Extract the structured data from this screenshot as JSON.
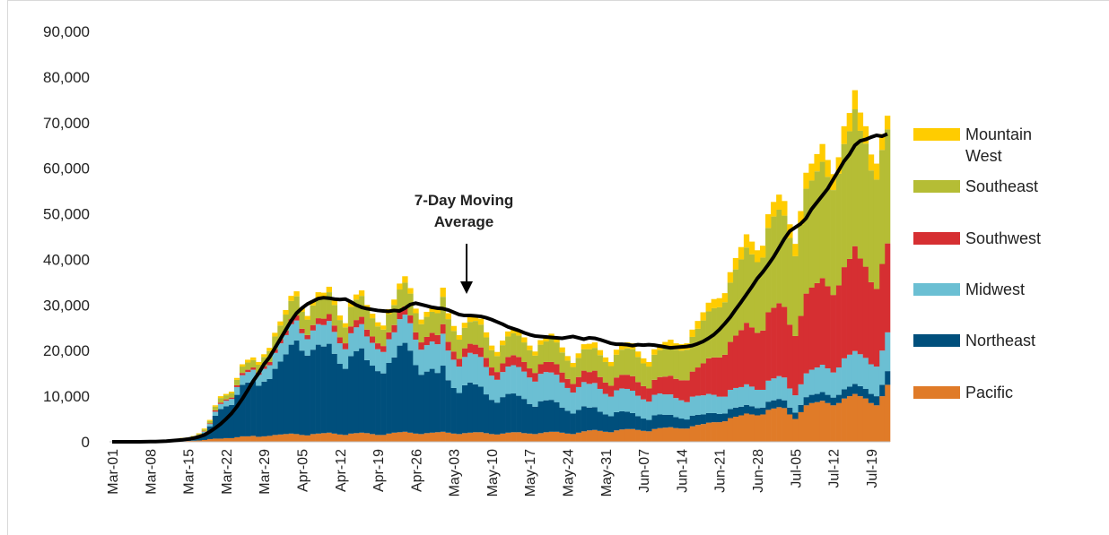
{
  "chart_data": {
    "type": "bar",
    "stacked": true,
    "grid": false,
    "legend": "right",
    "categories": [
      "Mar-01",
      null,
      null,
      null,
      null,
      null,
      null,
      "Mar-08",
      null,
      null,
      null,
      null,
      null,
      null,
      "Mar-15",
      null,
      null,
      null,
      null,
      null,
      null,
      "Mar-22",
      null,
      null,
      null,
      null,
      null,
      null,
      "Mar-29",
      null,
      null,
      null,
      null,
      null,
      null,
      "Apr-05",
      null,
      null,
      null,
      null,
      null,
      null,
      "Apr-12",
      null,
      null,
      null,
      null,
      null,
      null,
      "Apr-19",
      null,
      null,
      null,
      null,
      null,
      null,
      "Apr-26",
      null,
      null,
      null,
      null,
      null,
      null,
      "May-03",
      null,
      null,
      null,
      null,
      null,
      null,
      "May-10",
      null,
      null,
      null,
      null,
      null,
      null,
      "May-17",
      null,
      null,
      null,
      null,
      null,
      null,
      "May-24",
      null,
      null,
      null,
      null,
      null,
      null,
      "May-31",
      null,
      null,
      null,
      null,
      null,
      null,
      "Jun-07",
      null,
      null,
      null,
      null,
      null,
      null,
      "Jun-14",
      null,
      null,
      null,
      null,
      null,
      null,
      "Jun-21",
      null,
      null,
      null,
      null,
      null,
      null,
      "Jun-28",
      null,
      null,
      null,
      null,
      null,
      null,
      "Jul-05",
      null,
      null,
      null,
      null,
      null,
      null,
      "Jul-12",
      null,
      null,
      null,
      null,
      null,
      null,
      "Jul-19",
      null,
      null,
      null
    ],
    "ylim": [
      0,
      90000
    ],
    "yticks": [
      0,
      {
        "value": 10000,
        "label": "10,000"
      },
      {
        "value": 20000,
        "label": "20,000"
      },
      {
        "value": 30000,
        "label": "30,000"
      },
      {
        "value": 40000,
        "label": "40,000"
      },
      {
        "value": 50000,
        "label": "50,000"
      },
      {
        "value": 60000,
        "label": "60,000"
      },
      {
        "value": 70000,
        "label": "70,000"
      },
      {
        "value": 80000,
        "label": "80,000"
      },
      {
        "value": 90000,
        "label": "90,000"
      }
    ],
    "series": [
      {
        "name": "Pacific",
        "color": "#e07b28",
        "values": [
          0,
          0,
          10,
          10,
          20,
          20,
          30,
          40,
          50,
          60,
          80,
          100,
          120,
          150,
          200,
          250,
          300,
          400,
          600,
          700,
          700,
          800,
          800,
          1000,
          1200,
          1200,
          1300,
          1100,
          1200,
          1300,
          1500,
          1600,
          1700,
          1800,
          1700,
          1500,
          1400,
          1700,
          1800,
          1900,
          2000,
          1800,
          1600,
          1500,
          1800,
          1900,
          2000,
          1900,
          1700,
          1500,
          1500,
          1800,
          2000,
          2100,
          2200,
          2000,
          1800,
          1700,
          1900,
          2000,
          2100,
          2200,
          2000,
          1800,
          1700,
          1900,
          2000,
          2100,
          2100,
          1900,
          1700,
          1600,
          1800,
          2000,
          2100,
          2100,
          1900,
          1800,
          1700,
          1900,
          2100,
          2200,
          2200,
          2000,
          1800,
          1700,
          2000,
          2300,
          2500,
          2600,
          2400,
          2200,
          2100,
          2500,
          2700,
          2800,
          2800,
          2600,
          2400,
          2300,
          2800,
          3000,
          3100,
          3200,
          3000,
          2900,
          2900,
          3400,
          3700,
          3900,
          4200,
          4300,
          4300,
          4500,
          5200,
          5500,
          5800,
          6200,
          6000,
          5800,
          6000,
          7000,
          7300,
          7600,
          7400,
          6000,
          5000,
          6500,
          8000,
          8500,
          8700,
          9000,
          8500,
          8000,
          8500,
          9500,
          10000,
          10500,
          10000,
          9500,
          8500,
          8000,
          10000,
          12500
        ]
      },
      {
        "name": "Northeast",
        "color": "#004f7c",
        "values": [
          0,
          0,
          0,
          10,
          20,
          30,
          40,
          50,
          80,
          120,
          180,
          250,
          300,
          400,
          400,
          600,
          900,
          1500,
          2800,
          5000,
          6500,
          7000,
          7300,
          9300,
          11300,
          11800,
          12000,
          11200,
          12000,
          12500,
          14500,
          16000,
          17500,
          19500,
          20500,
          18500,
          17500,
          18500,
          19500,
          19000,
          19500,
          17500,
          15500,
          14500,
          17000,
          18000,
          18500,
          16000,
          15000,
          14000,
          13500,
          15500,
          16500,
          19000,
          19500,
          18000,
          15000,
          13000,
          13500,
          14000,
          13000,
          14500,
          11500,
          10000,
          9000,
          10500,
          11000,
          10500,
          10000,
          8500,
          7500,
          7000,
          8000,
          8500,
          8500,
          8000,
          7500,
          6500,
          6000,
          7000,
          7000,
          7000,
          6500,
          5500,
          5000,
          4500,
          5000,
          5500,
          5000,
          5000,
          4200,
          3800,
          3500,
          4000,
          4000,
          3800,
          3500,
          3000,
          2700,
          2500,
          3000,
          3000,
          2800,
          2700,
          2400,
          2200,
          2000,
          2300,
          2200,
          2100,
          2100,
          2000,
          1800,
          1700,
          2000,
          2000,
          1900,
          1900,
          1800,
          1600,
          1500,
          1800,
          1800,
          1800,
          1700,
          1500,
          1400,
          1600,
          1800,
          1800,
          1800,
          1900,
          1800,
          1700,
          1800,
          2000,
          2100,
          2200,
          2200,
          2100,
          2000,
          2000,
          2500,
          3000
        ]
      },
      {
        "name": "Midwest",
        "color": "#6bbfd3",
        "values": [
          0,
          0,
          0,
          0,
          0,
          0,
          0,
          10,
          10,
          20,
          30,
          50,
          70,
          90,
          100,
          130,
          180,
          300,
          500,
          900,
          1100,
          1200,
          1300,
          1700,
          2100,
          2300,
          2500,
          2400,
          2800,
          3000,
          3500,
          4000,
          4200,
          4500,
          4400,
          3800,
          3600,
          4200,
          4500,
          4700,
          5000,
          4800,
          4500,
          4300,
          5000,
          5200,
          5300,
          5200,
          5000,
          4800,
          4700,
          5200,
          5500,
          5800,
          6200,
          6000,
          5600,
          5500,
          5800,
          6000,
          6300,
          7000,
          6500,
          6200,
          5800,
          6200,
          6500,
          6600,
          6500,
          6000,
          5300,
          5000,
          5500,
          6000,
          6200,
          6300,
          6000,
          5800,
          5500,
          6000,
          6200,
          6000,
          6000,
          5500,
          5000,
          4600,
          5000,
          5300,
          5200,
          5300,
          5000,
          4500,
          4300,
          4800,
          5000,
          5000,
          4900,
          4500,
          4200,
          4000,
          4500,
          4600,
          4500,
          4500,
          4200,
          4000,
          3800,
          4200,
          4200,
          4200,
          4200,
          4000,
          3800,
          3700,
          4200,
          4300,
          4300,
          4500,
          4300,
          4000,
          3900,
          4600,
          4800,
          5000,
          5000,
          4200,
          3800,
          4500,
          5200,
          5500,
          5800,
          6000,
          5800,
          5500,
          6000,
          6800,
          7000,
          7200,
          7000,
          6800,
          6500,
          6500,
          7500,
          8500
        ]
      },
      {
        "name": "Southwest",
        "color": "#d62f32",
        "values": [
          0,
          0,
          0,
          0,
          0,
          0,
          0,
          0,
          0,
          0,
          10,
          10,
          20,
          30,
          30,
          40,
          60,
          100,
          150,
          300,
          300,
          300,
          300,
          400,
          500,
          500,
          500,
          500,
          600,
          700,
          800,
          900,
          1000,
          1100,
          1100,
          1000,
          900,
          1200,
          1300,
          1400,
          1500,
          1400,
          1300,
          1300,
          1500,
          1600,
          1600,
          1500,
          1400,
          1300,
          1300,
          1500,
          1600,
          1700,
          1800,
          1700,
          1600,
          1600,
          1800,
          1900,
          2000,
          2100,
          1900,
          1800,
          1700,
          1900,
          2000,
          2100,
          2100,
          2000,
          1800,
          1700,
          1900,
          2100,
          2200,
          2200,
          2100,
          2000,
          1900,
          2100,
          2200,
          2300,
          2300,
          2200,
          2000,
          1900,
          2200,
          2500,
          2600,
          2700,
          2600,
          2500,
          2400,
          2800,
          3000,
          3100,
          3200,
          3000,
          2900,
          2900,
          3300,
          3600,
          3900,
          4100,
          4200,
          4400,
          4800,
          5500,
          6200,
          7000,
          7800,
          8200,
          8600,
          9200,
          10500,
          11500,
          12500,
          13500,
          13000,
          12500,
          13000,
          15000,
          15500,
          16000,
          15500,
          14000,
          13000,
          15000,
          17500,
          18000,
          18500,
          19000,
          18000,
          17000,
          18000,
          20000,
          21000,
          23000,
          21000,
          20000,
          18000,
          17000,
          19000,
          19500
        ]
      },
      {
        "name": "Southeast",
        "color": "#b5bd35",
        "values": [
          0,
          0,
          0,
          0,
          0,
          0,
          10,
          10,
          20,
          30,
          50,
          70,
          100,
          130,
          150,
          200,
          300,
          400,
          500,
          800,
          1000,
          900,
          1000,
          1200,
          1400,
          1600,
          1600,
          1700,
          2000,
          2400,
          2800,
          3000,
          3500,
          4000,
          4200,
          3700,
          3400,
          4300,
          4500,
          4500,
          4800,
          4500,
          3800,
          3500,
          4300,
          4500,
          4600,
          4300,
          4000,
          3700,
          3600,
          4000,
          4400,
          4800,
          5200,
          4800,
          4200,
          4000,
          4400,
          4600,
          4800,
          6000,
          5000,
          4500,
          4200,
          4500,
          4800,
          5200,
          5000,
          4500,
          3800,
          3500,
          4000,
          4500,
          4800,
          4700,
          4300,
          4000,
          3800,
          4300,
          4500,
          5000,
          4800,
          4400,
          4000,
          3700,
          4200,
          4700,
          5000,
          5000,
          4800,
          4500,
          4300,
          5000,
          5500,
          5800,
          5900,
          5500,
          5000,
          4800,
          5500,
          5900,
          6200,
          6400,
          6400,
          6500,
          6700,
          7600,
          8500,
          9400,
          10300,
          10800,
          11000,
          11500,
          13000,
          14500,
          15500,
          16500,
          16000,
          15500,
          16000,
          18500,
          20000,
          20500,
          20000,
          19000,
          17500,
          20000,
          23000,
          23500,
          24500,
          25500,
          24000,
          23000,
          24500,
          27000,
          28000,
          30000,
          28000,
          27000,
          24500,
          24000,
          25000,
          25000
        ]
      },
      {
        "name": "Mountain West",
        "color": "#ffcc00",
        "values": [
          0,
          0,
          0,
          0,
          0,
          0,
          0,
          0,
          10,
          10,
          20,
          30,
          40,
          60,
          60,
          80,
          120,
          200,
          250,
          300,
          400,
          300,
          300,
          400,
          500,
          600,
          600,
          600,
          600,
          700,
          800,
          900,
          1000,
          1100,
          1100,
          900,
          800,
          1100,
          1200,
          1200,
          1200,
          1100,
          1000,
          900,
          1100,
          1100,
          1200,
          1100,
          1000,
          900,
          900,
          1100,
          1200,
          1300,
          1400,
          1200,
          1000,
          1000,
          1100,
          1200,
          1200,
          2000,
          1300,
          1100,
          1000,
          1100,
          1200,
          1300,
          1300,
          1100,
          1000,
          900,
          1000,
          1100,
          1200,
          1200,
          1100,
          1000,
          900,
          1000,
          1100,
          1200,
          1200,
          1100,
          1000,
          900,
          1000,
          1100,
          1200,
          1200,
          1100,
          1000,
          900,
          1100,
          1200,
          1300,
          1300,
          1200,
          1100,
          1000,
          1200,
          1300,
          1400,
          1500,
          1400,
          1400,
          1400,
          1600,
          1700,
          1800,
          1900,
          2000,
          2000,
          2000,
          2300,
          2500,
          2700,
          2900,
          2800,
          2600,
          2600,
          3000,
          3200,
          3300,
          3200,
          3000,
          2700,
          3000,
          3500,
          3700,
          3800,
          3900,
          3700,
          3500,
          3600,
          3900,
          4000,
          4200,
          4000,
          3800,
          3500,
          3500,
          3500,
          3000
        ]
      },
      {
        "name": "7-Day Moving Average",
        "type": "line",
        "color": "#000000",
        "values": [
          0,
          0,
          0,
          0,
          0,
          10,
          20,
          40,
          60,
          100,
          150,
          250,
          350,
          450,
          600,
          800,
          1100,
          1500,
          2200,
          3000,
          3900,
          5000,
          6200,
          7700,
          9400,
          11300,
          13300,
          15000,
          17000,
          18500,
          20500,
          22500,
          24500,
          26500,
          28200,
          29300,
          30200,
          30800,
          31400,
          31600,
          31500,
          31300,
          31200,
          31300,
          30700,
          30000,
          29500,
          29200,
          29000,
          28800,
          28700,
          28600,
          28800,
          28700,
          29300,
          30100,
          30400,
          30100,
          29800,
          29500,
          29300,
          29200,
          28900,
          28400,
          27900,
          27700,
          27700,
          27600,
          27500,
          27200,
          26800,
          26300,
          25800,
          25200,
          24800,
          24400,
          23900,
          23500,
          23200,
          23100,
          23000,
          22900,
          22800,
          22700,
          22900,
          23100,
          22800,
          22500,
          22800,
          22700,
          22400,
          22000,
          21600,
          21400,
          21400,
          21300,
          21100,
          21300,
          21200,
          21300,
          21200,
          21000,
          20800,
          20600,
          20700,
          20800,
          20900,
          21100,
          21500,
          22000,
          22700,
          23500,
          24600,
          25900,
          27300,
          29000,
          30600,
          32300,
          34000,
          35800,
          37200,
          38800,
          40500,
          42500,
          44500,
          46200,
          47000,
          47800,
          49000,
          51000,
          52500,
          54000,
          55500,
          57500,
          59500,
          61500,
          63000,
          65000,
          66000,
          66300,
          66800,
          67200,
          67000,
          67500
        ]
      }
    ]
  }
}
